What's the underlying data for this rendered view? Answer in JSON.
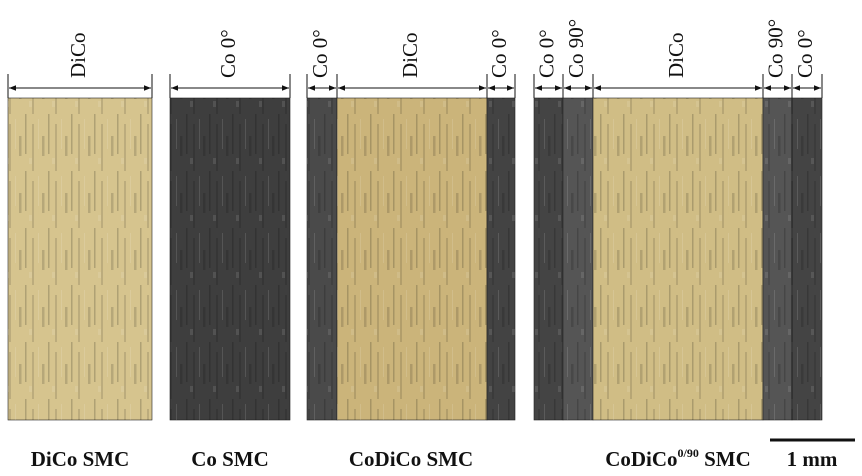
{
  "panels": [
    {
      "caption": {
        "text": "DiCo SMC"
      },
      "layers": [
        {
          "label": "DiCo",
          "color": "#d6c48e"
        }
      ]
    },
    {
      "caption": {
        "text": "Co SMC"
      },
      "layers": [
        {
          "label": "Co 0°",
          "color": "#3e3e3e"
        }
      ]
    },
    {
      "caption": {
        "text": "CoDiCo SMC"
      },
      "layers": [
        {
          "label": "Co 0°",
          "color": "#4a4a4a"
        },
        {
          "label": "DiCo",
          "color": "#cbb47a"
        },
        {
          "label": "Co 0°",
          "color": "#434343"
        }
      ]
    },
    {
      "caption": {
        "text": "CoDiCo",
        "sup": "0/90",
        "suffix": "SMC"
      },
      "layers": [
        {
          "label": "Co 0°",
          "color": "#444444"
        },
        {
          "label": "Co 90°",
          "color": "#555555"
        },
        {
          "label": "DiCo",
          "color": "#d0bd85"
        },
        {
          "label": "Co 90°",
          "color": "#555555"
        },
        {
          "label": "Co 0°",
          "color": "#444444"
        }
      ]
    }
  ],
  "scale_bar": {
    "label": "1 mm"
  }
}
